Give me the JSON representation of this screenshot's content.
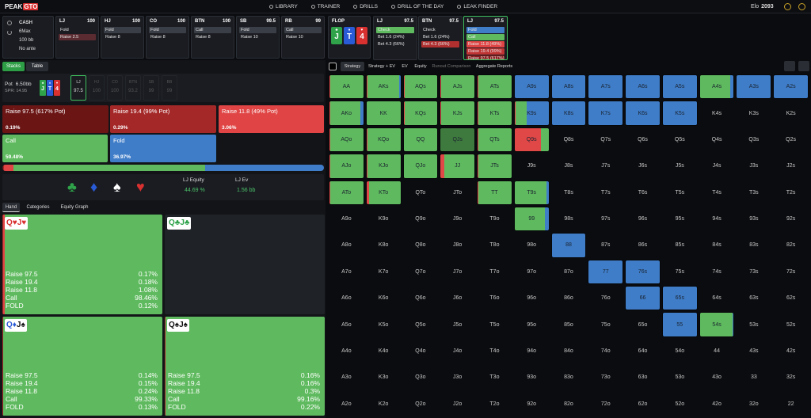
{
  "nav": {
    "logo": [
      "PEAK",
      "GTO"
    ],
    "items": [
      "LIBRARY",
      "TRAINER",
      "DRILLS",
      "DRILL OF THE DAY",
      "LEAK FINDER"
    ],
    "elo_label": "Elo",
    "elo": 2093
  },
  "game": [
    "CASH",
    "6Max",
    "100 bb",
    "No ante"
  ],
  "preflop": [
    {
      "name": "LJ",
      "stack": 100,
      "actions": [
        {
          "label": "Fold"
        },
        {
          "label": "Raise 2.5",
          "color": "#5a2c31"
        }
      ]
    },
    {
      "name": "HJ",
      "stack": 100,
      "actions": [
        {
          "label": "Fold",
          "color": "#3a3e46"
        },
        {
          "label": "Raise 8"
        }
      ]
    },
    {
      "name": "CO",
      "stack": 100,
      "actions": [
        {
          "label": "Fold",
          "color": "#3a3e46"
        },
        {
          "label": "Raise 8"
        }
      ]
    },
    {
      "name": "BTN",
      "stack": 100,
      "actions": [
        {
          "label": "Call",
          "color": "#3a3e46"
        },
        {
          "label": "Raise 8"
        }
      ]
    },
    {
      "name": "SB",
      "stack": 99.5,
      "actions": [
        {
          "label": "Fold",
          "color": "#3a3e46"
        },
        {
          "label": "Raise 10"
        }
      ]
    },
    {
      "name": "RB",
      "stack": 99,
      "actions": [
        {
          "label": "Call",
          "color": "#3a3e46"
        },
        {
          "label": "Raise 10"
        }
      ]
    }
  ],
  "flop": {
    "label": "FLOP",
    "cards": [
      {
        "rank": "J",
        "suit": "♣",
        "color": "#2fa24a"
      },
      {
        "rank": "T",
        "suit": "♦",
        "color": "#2a5bd7"
      },
      {
        "rank": "4",
        "suit": "♥",
        "color": "#d93030"
      }
    ]
  },
  "postflop": [
    {
      "name": "LJ",
      "stack": 97.5,
      "actions": [
        {
          "label": "Check",
          "color": "#5fba5f"
        },
        {
          "label": "Bet 1.6 (24%)"
        },
        {
          "label": "Bet 4.3 (66%)"
        }
      ]
    },
    {
      "name": "BTN",
      "stack": 97.5,
      "actions": [
        {
          "label": "Check"
        },
        {
          "label": "Bet 1.6 (24%)"
        },
        {
          "label": "Bet 4.3 (66%)",
          "color": "#b03030"
        }
      ]
    },
    {
      "name": "LJ",
      "stack": 97.5,
      "active": true,
      "actions": [
        {
          "label": "Fold",
          "color": "#3f7dc8"
        },
        {
          "label": "Call",
          "color": "#5fba5f"
        },
        {
          "label": "Raise 11.8 (49%)",
          "color": "#e04444"
        },
        {
          "label": "Raise 19.4 (99%)",
          "color": "#c03434"
        },
        {
          "label": "Raise 97.5 (617%)",
          "color": "#8a1e1e"
        }
      ]
    }
  ],
  "left": {
    "tabs": [
      "Stacks",
      "Table"
    ],
    "pot_label": "Pot",
    "pot": "6.50bb",
    "spr": "SPR: 14.95",
    "seats": [
      {
        "pos": "LJ",
        "stack": 97.5,
        "active": true
      },
      {
        "pos": "HJ",
        "stack": 100
      },
      {
        "pos": "CO",
        "stack": 100
      },
      {
        "pos": "BTN",
        "stack": 93.2
      },
      {
        "pos": "SB",
        "stack": 99
      },
      {
        "pos": "BB",
        "stack": 99
      }
    ],
    "actions": [
      {
        "label": "Raise 97.5 (617% Pot)",
        "freq": "0.19%",
        "color": "#6b1515"
      },
      {
        "label": "Raise 19.4 (99% Pot)",
        "freq": "0.29%",
        "color": "#a52828"
      },
      {
        "label": "Raise 11.8 (49% Pot)",
        "freq": "3.06%",
        "color": "#e04444"
      },
      {
        "label": "Call",
        "freq": "59.48%",
        "color": "#5fba5f"
      },
      {
        "label": "Fold",
        "freq": "36.97%",
        "color": "#3f7dc8"
      }
    ],
    "suits": [
      {
        "s": "♣",
        "color": "#2fa24a"
      },
      {
        "s": "♦",
        "color": "#2a5bd7"
      },
      {
        "s": "♠",
        "color": "#ffffff"
      },
      {
        "s": "♥",
        "color": "#d93030"
      }
    ],
    "equity": [
      {
        "label": "LJ Equity",
        "value": "44.69 %"
      },
      {
        "label": "LJ Ev",
        "value": "1.56 bb"
      }
    ],
    "hand_tabs": [
      "Hand",
      "Categories",
      "Equity Graph"
    ],
    "combos": [
      {
        "cards": [
          {
            "t": "Q♥",
            "color": "#d93030"
          },
          {
            "t": "J♥",
            "color": "#d93030"
          }
        ],
        "rows": [
          [
            "Raise 97.5",
            "0.17%"
          ],
          [
            "Raise 19.4",
            "0.18%"
          ],
          [
            "Raise 11.8",
            "1.08%"
          ],
          [
            "Call",
            "98.46%"
          ],
          [
            "FOLD",
            "0.12%"
          ]
        ]
      },
      {
        "cards": [
          {
            "t": "Q♣",
            "color": "#2fa24a"
          },
          {
            "t": "J♣",
            "color": "#2fa24a"
          }
        ],
        "rows": []
      },
      {
        "cards": [
          {
            "t": "Q♦",
            "color": "#2a5bd7"
          },
          {
            "t": "J♠",
            "color": "#111111"
          }
        ],
        "rows": [
          [
            "Raise 97.5",
            "0.14%"
          ],
          [
            "Raise 19.4",
            "0.15%"
          ],
          [
            "Raise 11.8",
            "0.24%"
          ],
          [
            "Call",
            "99.33%"
          ],
          [
            "FOLD",
            "0.13%"
          ]
        ]
      },
      {
        "cards": [
          {
            "t": "Q♠",
            "color": "#111111"
          },
          {
            "t": "J♠",
            "color": "#111111"
          }
        ],
        "rows": [
          [
            "Raise 97.5",
            "0.16%"
          ],
          [
            "Raise 19.4",
            "0.16%"
          ],
          [
            "Raise 11.8",
            "0.3%"
          ],
          [
            "Call",
            "99.16%"
          ],
          [
            "FOLD",
            "0.22%"
          ]
        ]
      }
    ]
  },
  "right": {
    "tabs": [
      "Strategy",
      "Strategy + EV",
      "EV",
      "Equity",
      "Runout Comparison",
      "Aggregate Reports"
    ]
  },
  "range": {
    "colors": [
      "#e04848",
      "#5fba5f",
      "#3f7dc8"
    ],
    "selected": [
      2,
      3
    ],
    "cells": [
      [
        "AA",
        "AKs",
        "AQs",
        "AJs",
        "ATs",
        "A9s",
        "A8s",
        "A7s",
        "A6s",
        "A5s",
        "A4s",
        "A3s",
        "A2s"
      ],
      [
        "AKo",
        "KK",
        "KQs",
        "KJs",
        "KTs",
        "K9s",
        "K8s",
        "K7s",
        "K6s",
        "K5s",
        "K4s",
        "K3s",
        "K2s"
      ],
      [
        "AQo",
        "KQo",
        "QQ",
        "QJs",
        "QTs",
        "Q9s",
        "Q8s",
        "Q7s",
        "Q6s",
        "Q5s",
        "Q4s",
        "Q3s",
        "Q2s"
      ],
      [
        "AJo",
        "KJo",
        "QJo",
        "JJ",
        "JTs",
        "J9s",
        "J8s",
        "J7s",
        "J6s",
        "J5s",
        "J4s",
        "J3s",
        "J2s"
      ],
      [
        "ATo",
        "KTo",
        "QTo",
        "JTo",
        "TT",
        "T9s",
        "T8s",
        "T7s",
        "T6s",
        "T5s",
        "T4s",
        "T3s",
        "T2s"
      ],
      [
        "A9o",
        "K9o",
        "Q9o",
        "J9o",
        "T9o",
        "99",
        "98s",
        "97s",
        "96s",
        "95s",
        "94s",
        "93s",
        "92s"
      ],
      [
        "A8o",
        "K8o",
        "Q8o",
        "J8o",
        "T8o",
        "98o",
        "88",
        "87s",
        "86s",
        "85s",
        "84s",
        "83s",
        "82s"
      ],
      [
        "A7o",
        "K7o",
        "Q7o",
        "J7o",
        "T7o",
        "97o",
        "87o",
        "77",
        "76s",
        "75s",
        "74s",
        "73s",
        "72s"
      ],
      [
        "A6o",
        "K6o",
        "Q6o",
        "J6o",
        "T6o",
        "96o",
        "86o",
        "76o",
        "66",
        "65s",
        "64s",
        "63s",
        "62s"
      ],
      [
        "A5o",
        "K5o",
        "Q5o",
        "J5o",
        "T5o",
        "95o",
        "85o",
        "75o",
        "65o",
        "55",
        "54s",
        "53s",
        "52s"
      ],
      [
        "A4o",
        "K4o",
        "Q4o",
        "J4o",
        "T4o",
        "94o",
        "84o",
        "74o",
        "64o",
        "54o",
        "44",
        "43s",
        "42s"
      ],
      [
        "A3o",
        "K3o",
        "Q3o",
        "J3o",
        "T3o",
        "93o",
        "83o",
        "73o",
        "63o",
        "53o",
        "43o",
        "33",
        "32s"
      ],
      [
        "A2o",
        "K2o",
        "Q2o",
        "J2o",
        "T2o",
        "92o",
        "82o",
        "72o",
        "62o",
        "52o",
        "42o",
        "32o",
        "22"
      ]
    ],
    "mix": [
      [
        [
          3,
          97,
          0
        ],
        [
          3,
          90,
          7
        ],
        [
          3,
          92,
          5
        ],
        [
          2,
          98,
          0
        ],
        [
          2,
          98,
          0
        ],
        [
          0,
          0,
          100
        ],
        [
          0,
          0,
          100
        ],
        [
          0,
          0,
          100
        ],
        [
          0,
          0,
          100
        ],
        [
          0,
          0,
          100
        ],
        [
          0,
          85,
          15
        ],
        [
          0,
          0,
          100
        ],
        [
          0,
          0,
          100
        ]
      ],
      [
        [
          3,
          85,
          12
        ],
        [
          0,
          100,
          0
        ],
        [
          3,
          92,
          5
        ],
        [
          2,
          98,
          0
        ],
        [
          2,
          98,
          0
        ],
        [
          3,
          30,
          67
        ],
        [
          0,
          0,
          100
        ],
        [
          0,
          0,
          100
        ],
        [
          0,
          0,
          100
        ],
        [
          0,
          0,
          100
        ],
        null,
        null,
        null
      ],
      [
        [
          2,
          98,
          0
        ],
        [
          2,
          98,
          0
        ],
        [
          0,
          100,
          0
        ],
        [
          0,
          100,
          0
        ],
        [
          2,
          98,
          0
        ],
        [
          75,
          25,
          0
        ],
        null,
        null,
        null,
        null,
        null,
        null,
        null
      ],
      [
        [
          2,
          98,
          0
        ],
        [
          2,
          98,
          0
        ],
        [
          2,
          98,
          0
        ],
        [
          10,
          90,
          0
        ],
        [
          2,
          98,
          0
        ],
        null,
        null,
        null,
        null,
        null,
        null,
        null,
        null
      ],
      [
        [
          2,
          98,
          0
        ],
        [
          8,
          92,
          0
        ],
        null,
        null,
        [
          3,
          97,
          0
        ],
        [
          0,
          90,
          10
        ],
        null,
        null,
        null,
        null,
        null,
        null,
        null
      ],
      [
        null,
        null,
        null,
        null,
        null,
        [
          0,
          85,
          15
        ],
        null,
        null,
        null,
        null,
        null,
        null,
        null
      ],
      [
        null,
        null,
        null,
        null,
        null,
        null,
        [
          0,
          0,
          100
        ],
        null,
        null,
        null,
        null,
        null,
        null
      ],
      [
        null,
        null,
        null,
        null,
        null,
        null,
        null,
        [
          0,
          0,
          100
        ],
        [
          0,
          0,
          100
        ],
        null,
        null,
        null,
        null
      ],
      [
        null,
        null,
        null,
        null,
        null,
        null,
        null,
        null,
        [
          0,
          0,
          100
        ],
        [
          0,
          0,
          100
        ],
        null,
        null,
        null
      ],
      [
        null,
        null,
        null,
        null,
        null,
        null,
        null,
        null,
        null,
        [
          0,
          0,
          100
        ],
        [
          0,
          92,
          8
        ],
        null,
        null
      ],
      [
        null,
        null,
        null,
        null,
        null,
        null,
        null,
        null,
        null,
        null,
        null,
        null,
        null
      ],
      [
        null,
        null,
        null,
        null,
        null,
        null,
        null,
        null,
        null,
        null,
        null,
        null,
        null
      ],
      [
        null,
        null,
        null,
        null,
        null,
        null,
        null,
        null,
        null,
        null,
        null,
        null,
        null
      ]
    ]
  }
}
